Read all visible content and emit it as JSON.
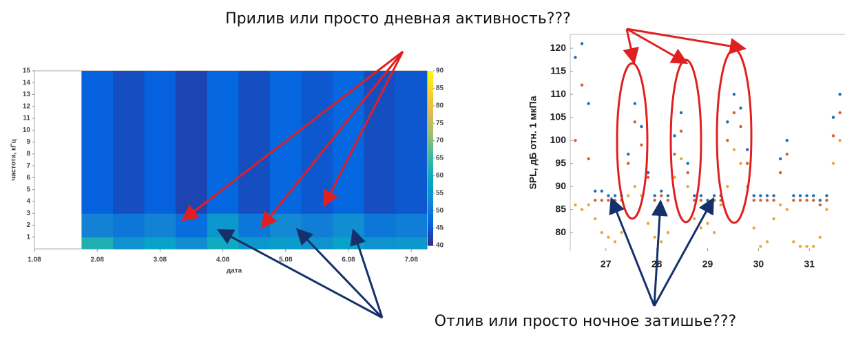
{
  "annotations": {
    "top_text": "Прилив или просто дневная активность???",
    "bottom_text": "Отлив или просто ночное затишье???"
  },
  "chart_data": [
    {
      "type": "heatmap",
      "xlabel": "дата",
      "ylabel": "частота, кГц",
      "xlim": [
        1,
        7.25
      ],
      "ylim": [
        0,
        15
      ],
      "clim": [
        40,
        90
      ],
      "xticks": [
        {
          "value": 1,
          "label": "1.08"
        },
        {
          "value": 2,
          "label": "2.08"
        },
        {
          "value": 3,
          "label": "3.08"
        },
        {
          "value": 4,
          "label": "4.08"
        },
        {
          "value": 5,
          "label": "5.08"
        },
        {
          "value": 6,
          "label": "6.08"
        },
        {
          "value": 7,
          "label": "7.08"
        }
      ],
      "yticks": [
        1,
        2,
        3,
        4,
        5,
        6,
        7,
        8,
        9,
        10,
        11,
        12,
        13,
        14,
        15
      ],
      "cticks": [
        40,
        45,
        50,
        55,
        60,
        65,
        70,
        75,
        80,
        85,
        90
      ],
      "colormap": [
        "#352a87",
        "#0363e1",
        "#1485d4",
        "#06a7c6",
        "#38b99e",
        "#92bf73",
        "#d9ba56",
        "#fcce2e",
        "#f9fb0e"
      ],
      "x_bins": [
        1.75,
        2.25,
        2.75,
        3.25,
        3.75,
        4.25,
        4.75,
        5.25,
        5.75,
        6.25,
        6.75,
        7.25
      ],
      "y_bins": [
        0,
        1,
        3,
        15
      ],
      "values": [
        [
          62,
          55,
          58,
          54,
          60,
          56,
          57,
          55,
          58,
          55,
          56
        ],
        [
          52,
          50,
          52,
          48,
          56,
          50,
          53,
          51,
          54,
          50,
          51
        ],
        [
          46,
          44,
          46,
          43,
          47,
          44,
          47,
          45,
          47,
          44,
          45
        ]
      ]
    },
    {
      "type": "scatter",
      "ylabel": "SPL, дБ отн. 1 мкПа",
      "xlim": [
        26.3,
        31.7
      ],
      "ylim": [
        76,
        123
      ],
      "xticks": [
        27,
        28,
        29,
        30,
        31
      ],
      "yticks": [
        80,
        85,
        90,
        95,
        100,
        105,
        110,
        115,
        120
      ],
      "x": [
        26.4,
        26.53,
        26.66,
        26.79,
        26.92,
        27.05,
        27.18,
        27.31,
        27.44,
        27.57,
        27.7,
        27.83,
        27.96,
        28.09,
        28.22,
        28.35,
        28.48,
        28.61,
        28.74,
        28.87,
        29.0,
        29.13,
        29.26,
        29.39,
        29.52,
        29.65,
        29.78,
        29.91,
        30.04,
        30.17,
        30.3,
        30.43,
        30.56,
        30.69,
        30.82,
        30.95,
        31.08,
        31.21,
        31.34,
        31.47,
        31.6
      ],
      "series": [
        {
          "color": "#e8a838",
          "values": [
            86,
            85,
            86,
            83,
            80,
            79,
            78,
            80,
            88,
            90,
            88,
            82,
            79,
            78,
            80,
            92,
            96,
            90,
            83,
            81,
            82,
            80,
            86,
            90,
            98,
            95,
            90,
            81,
            77,
            78,
            83,
            86,
            85,
            78,
            77,
            77,
            77,
            79,
            85,
            95,
            100
          ]
        },
        {
          "color": "#d95f2a",
          "values": [
            100,
            112,
            96,
            87,
            87,
            87,
            87,
            87,
            95,
            104,
            99,
            92,
            87,
            88,
            87,
            97,
            102,
            93,
            87,
            87,
            86,
            87,
            87,
            100,
            106,
            103,
            95,
            87,
            87,
            87,
            87,
            93,
            97,
            87,
            87,
            87,
            87,
            86,
            87,
            101,
            106
          ]
        },
        {
          "color": "#1f6fb5",
          "values": [
            118,
            121,
            108,
            89,
            89,
            88,
            88,
            88,
            97,
            108,
            103,
            93,
            88,
            89,
            88,
            101,
            106,
            95,
            88,
            88,
            87,
            88,
            88,
            104,
            110,
            107,
            98,
            88,
            88,
            88,
            88,
            96,
            100,
            88,
            88,
            88,
            88,
            87,
            88,
            105,
            110
          ]
        }
      ]
    }
  ]
}
